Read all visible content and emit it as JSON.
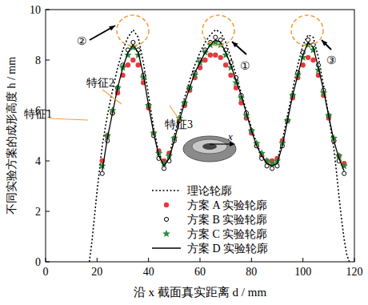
{
  "chart_data": {
    "type": "line",
    "x_label": "沿 x 截面真实距离 d / mm",
    "y_label": "不同实验方案的成形高度 h / mm",
    "xlim": [
      0,
      120
    ],
    "xticks": [
      0,
      20,
      40,
      60,
      80,
      100,
      120
    ],
    "ylim": [
      0,
      10
    ],
    "yticks": [
      0,
      2,
      4,
      6,
      8,
      10
    ],
    "legend": "bottom",
    "annotations": [
      "特征1",
      "特征2",
      "特征3",
      "①",
      "②",
      "③"
    ],
    "inset_label": "x",
    "x": [
      22,
      24,
      26,
      28,
      30,
      32,
      34,
      36,
      38,
      40,
      42,
      44,
      46,
      48,
      50,
      52,
      54,
      56,
      58,
      60,
      62,
      64,
      66,
      68,
      70,
      72,
      74,
      76,
      78,
      80,
      82,
      84,
      86,
      88,
      90,
      92,
      94,
      96,
      98,
      100,
      102,
      104,
      106,
      108,
      110,
      112,
      114,
      116
    ],
    "series": [
      {
        "name": "理论轮廓",
        "color": "#000000",
        "marker": "none",
        "line_style": "dotted",
        "x": [
          17,
          18,
          19,
          20,
          21,
          22,
          24,
          26,
          28,
          30,
          32,
          34,
          36,
          38,
          40,
          42,
          44,
          46,
          48,
          50,
          52,
          54,
          56,
          58,
          60,
          62,
          64,
          66,
          68,
          70,
          72,
          74,
          76,
          78,
          80,
          82,
          84,
          86,
          88,
          90,
          92,
          94,
          96,
          98,
          100,
          102,
          104,
          106,
          108,
          110,
          112,
          113,
          114,
          115,
          116,
          117,
          118
        ],
        "values": [
          0,
          0.8,
          1.8,
          2.8,
          3.7,
          4.6,
          5.8,
          6.8,
          7.7,
          8.4,
          8.9,
          9.2,
          8.9,
          7.9,
          6.6,
          5.3,
          4.3,
          3.9,
          4.2,
          5.0,
          5.8,
          6.5,
          7.2,
          7.8,
          8.3,
          8.7,
          9.0,
          9.2,
          9.1,
          8.7,
          8.1,
          7.4,
          6.7,
          6.0,
          5.3,
          4.7,
          4.2,
          3.9,
          3.8,
          4.0,
          4.8,
          5.8,
          6.8,
          7.8,
          8.6,
          9.0,
          8.9,
          8.1,
          7.0,
          5.8,
          4.5,
          3.6,
          2.6,
          1.7,
          0.9,
          0.3,
          0
        ]
      },
      {
        "name": "方案 A 实验轮廓",
        "color": "#e8383d",
        "marker": "circle",
        "line_style": "none",
        "values": [
          4.0,
          5.0,
          5.9,
          6.7,
          7.4,
          7.8,
          8.0,
          7.8,
          7.1,
          6.1,
          5.1,
          4.4,
          4.0,
          4.3,
          4.9,
          5.6,
          6.2,
          6.8,
          7.3,
          7.7,
          8.0,
          8.2,
          8.2,
          8.1,
          7.8,
          7.4,
          6.9,
          6.3,
          5.7,
          5.1,
          4.6,
          4.2,
          4.0,
          4.0,
          4.1,
          4.8,
          5.6,
          6.5,
          7.3,
          7.8,
          8.1,
          8.0,
          7.4,
          6.6,
          5.7,
          4.8,
          4.2,
          3.9
        ]
      },
      {
        "name": "方案 B 实验轮廓",
        "color": "#000000",
        "marker": "circle-open",
        "line_style": "none",
        "values": [
          3.5,
          4.8,
          5.9,
          6.9,
          7.8,
          8.4,
          8.7,
          8.4,
          7.4,
          6.2,
          5.0,
          4.1,
          3.7,
          4.0,
          4.8,
          5.6,
          6.3,
          6.9,
          7.5,
          8.0,
          8.4,
          8.7,
          8.9,
          8.8,
          8.4,
          7.9,
          7.3,
          6.6,
          5.9,
          5.2,
          4.6,
          4.1,
          3.8,
          3.7,
          3.8,
          4.6,
          5.6,
          6.6,
          7.5,
          8.3,
          8.8,
          8.6,
          7.8,
          6.8,
          5.8,
          4.8,
          4.0,
          3.5
        ]
      },
      {
        "name": "方案 C 实验轮廓",
        "color": "#2e8b3e",
        "marker": "star",
        "line_style": "none",
        "values": [
          3.8,
          5.0,
          6.0,
          6.9,
          7.7,
          8.2,
          8.5,
          8.2,
          7.3,
          6.2,
          5.1,
          4.3,
          3.9,
          4.2,
          4.9,
          5.7,
          6.3,
          6.9,
          7.4,
          7.9,
          8.3,
          8.6,
          8.7,
          8.6,
          8.2,
          7.7,
          7.1,
          6.5,
          5.8,
          5.2,
          4.7,
          4.3,
          4.0,
          3.9,
          4.0,
          4.7,
          5.6,
          6.6,
          7.4,
          8.1,
          8.6,
          8.4,
          7.6,
          6.7,
          5.8,
          4.9,
          4.2,
          3.8
        ]
      },
      {
        "name": "方案 D 实验轮廓",
        "color": "#000000",
        "marker": "none",
        "line_style": "solid",
        "values": [
          3.6,
          4.9,
          5.9,
          6.9,
          7.7,
          8.3,
          8.6,
          8.3,
          7.4,
          6.2,
          5.1,
          4.2,
          3.8,
          4.1,
          4.8,
          5.6,
          6.3,
          6.9,
          7.5,
          7.9,
          8.3,
          8.6,
          8.8,
          8.7,
          8.3,
          7.8,
          7.2,
          6.6,
          5.9,
          5.2,
          4.6,
          4.2,
          3.9,
          3.8,
          3.9,
          4.6,
          5.6,
          6.6,
          7.4,
          8.2,
          8.7,
          8.5,
          7.7,
          6.8,
          5.8,
          4.8,
          4.1,
          3.6
        ]
      }
    ]
  }
}
